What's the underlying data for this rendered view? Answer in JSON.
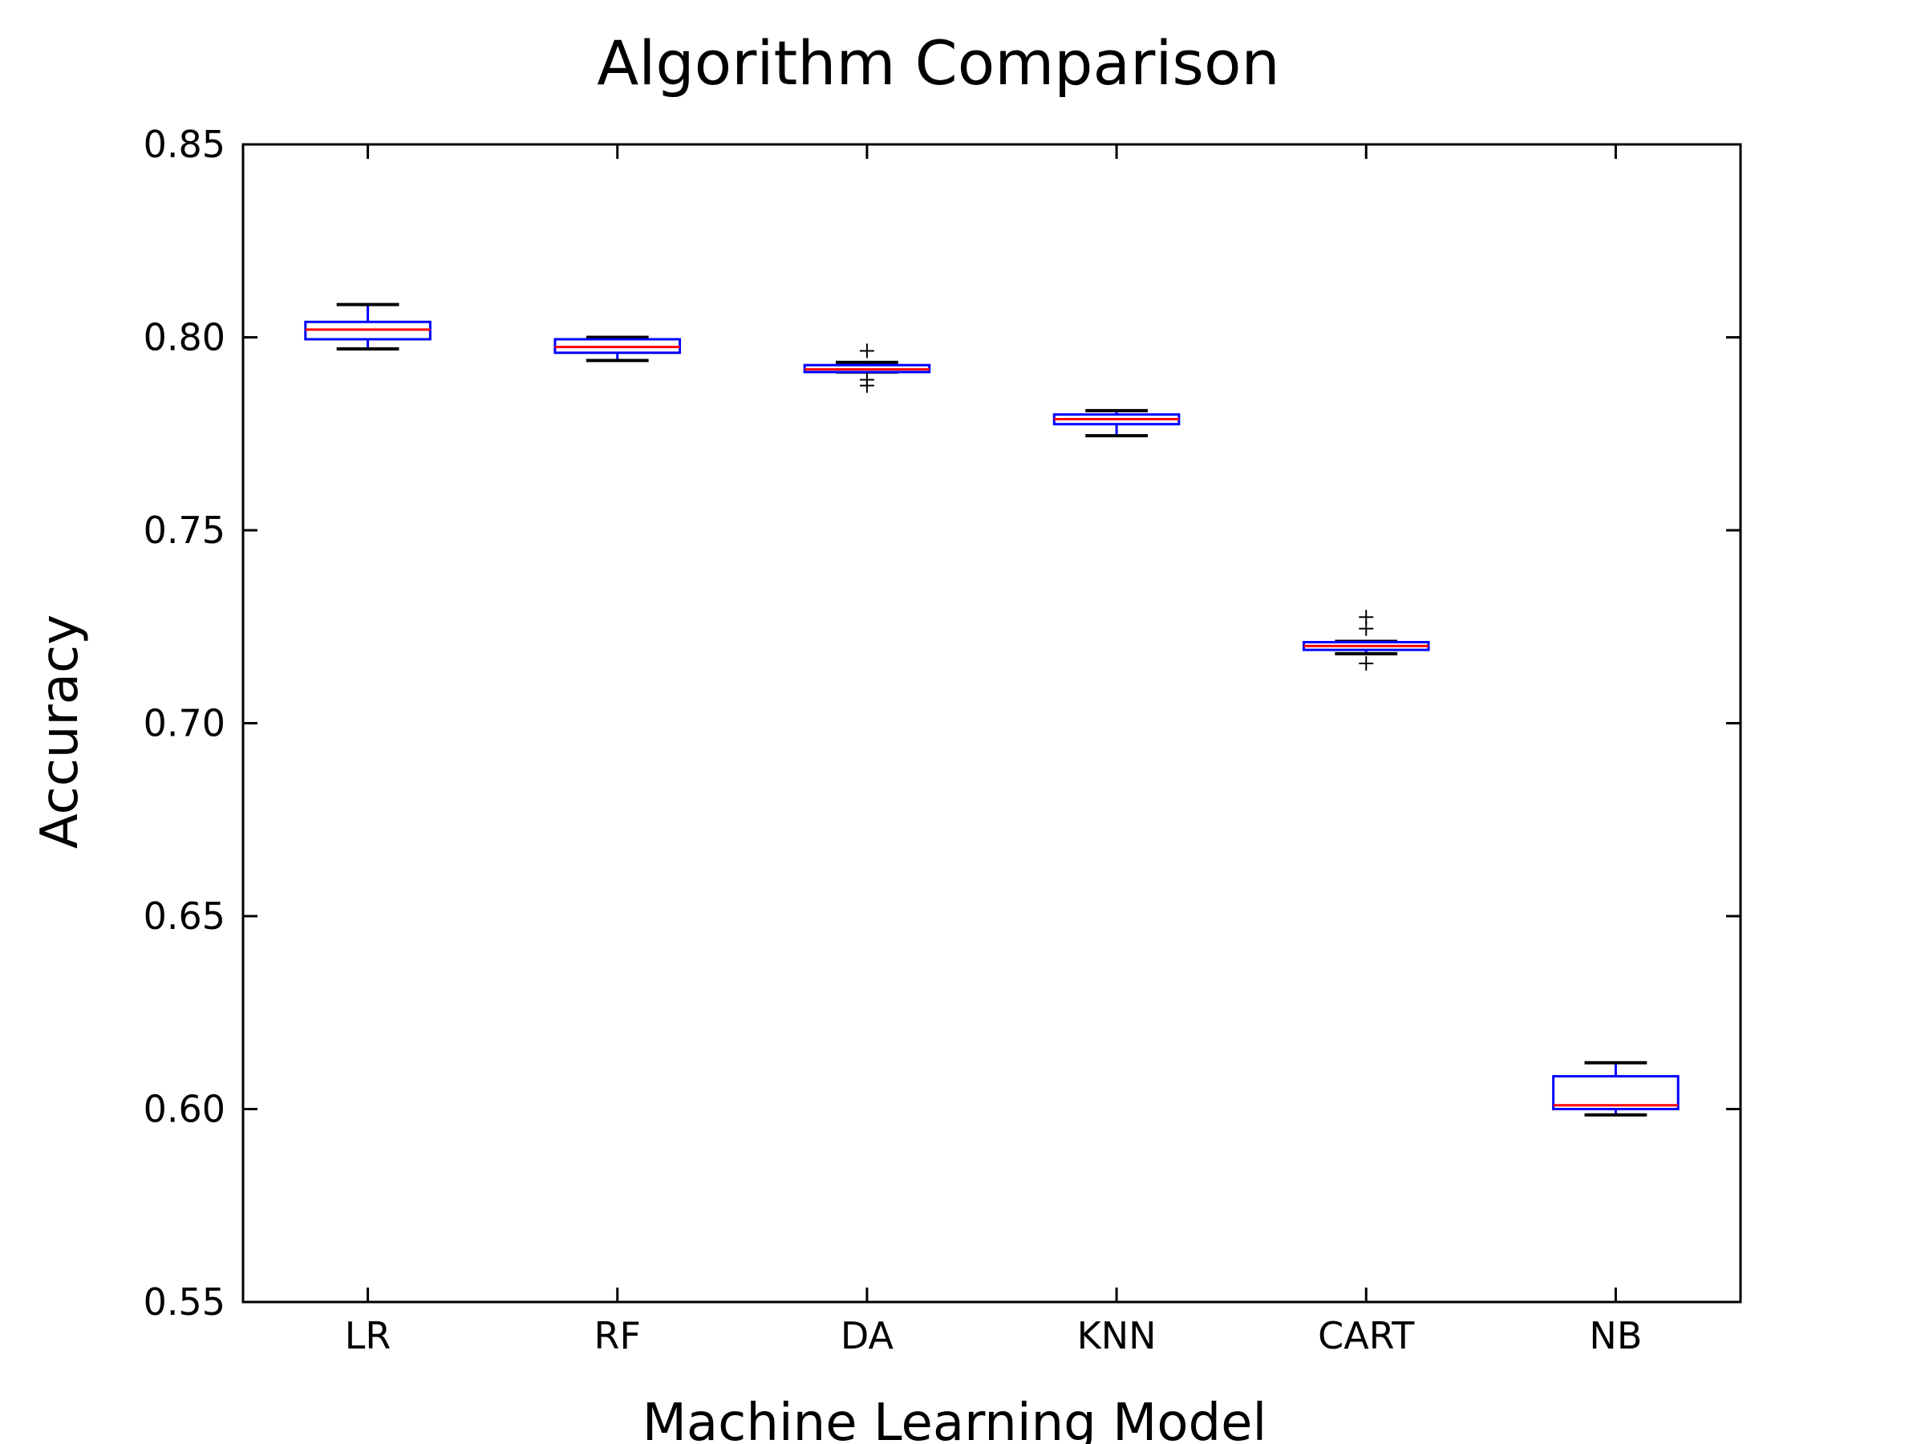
{
  "chart_data": {
    "type": "box",
    "title": "Algorithm Comparison",
    "xlabel": "Machine Learning Model",
    "ylabel": "Accuracy",
    "ylim": [
      0.55,
      0.85
    ],
    "yticks": [
      "0.55",
      "0.60",
      "0.65",
      "0.70",
      "0.75",
      "0.80",
      "0.85"
    ],
    "grid": false,
    "categories": [
      "LR",
      "RF",
      "DA",
      "KNN",
      "CART",
      "NB"
    ],
    "boxes": [
      {
        "category": "LR",
        "whisker_low": 0.797,
        "q1": 0.7995,
        "median": 0.802,
        "q3": 0.804,
        "whisker_high": 0.8085,
        "outliers": []
      },
      {
        "category": "RF",
        "whisker_low": 0.794,
        "q1": 0.796,
        "median": 0.7975,
        "q3": 0.7995,
        "whisker_high": 0.8,
        "outliers": []
      },
      {
        "category": "DA",
        "whisker_low": 0.791,
        "q1": 0.791,
        "median": 0.7917,
        "q3": 0.7928,
        "whisker_high": 0.7935,
        "outliers": [
          0.7965,
          0.789,
          0.7875
        ]
      },
      {
        "category": "KNN",
        "whisker_low": 0.7745,
        "q1": 0.7775,
        "median": 0.7788,
        "q3": 0.78,
        "whisker_high": 0.781,
        "outliers": []
      },
      {
        "category": "CART",
        "whisker_low": 0.718,
        "q1": 0.719,
        "median": 0.72,
        "q3": 0.721,
        "whisker_high": 0.7212,
        "outliers": [
          0.7275,
          0.7245,
          0.7155
        ]
      },
      {
        "category": "NB",
        "whisker_low": 0.5985,
        "q1": 0.6,
        "median": 0.601,
        "q3": 0.6085,
        "whisker_high": 0.612,
        "outliers": []
      }
    ],
    "colors": {
      "box": "#0000ff",
      "median": "#ff0000",
      "whisker": "#000000",
      "cap": "#000000",
      "flier": "#000000",
      "axes": "#000000"
    }
  }
}
